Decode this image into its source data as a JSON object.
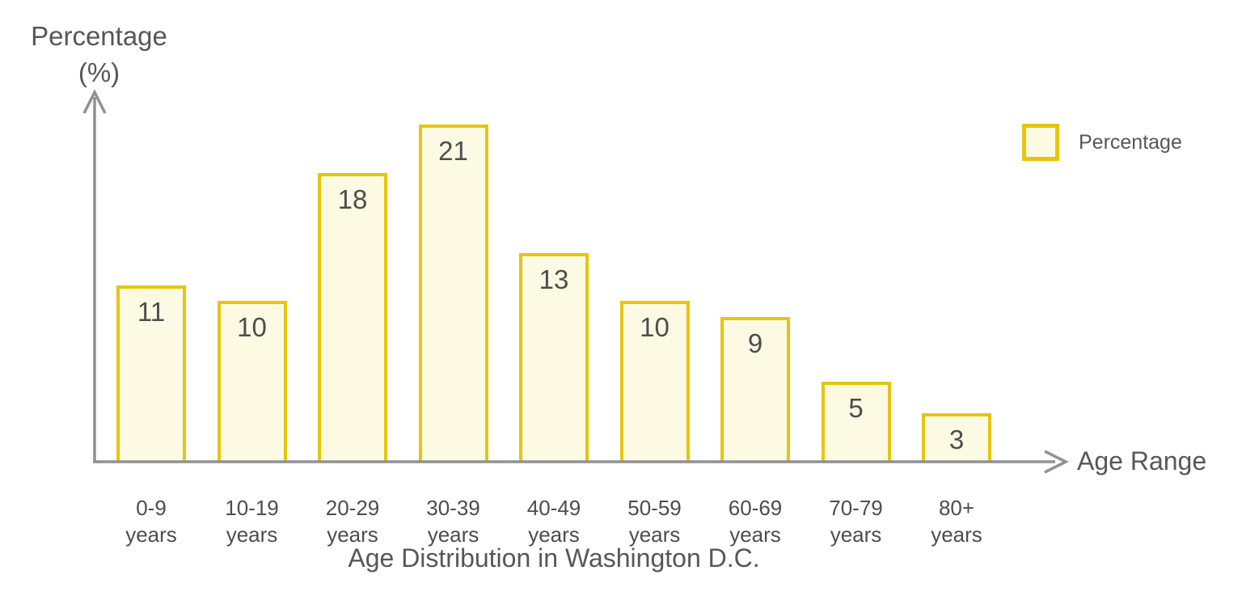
{
  "title": "Age Distribution in Washington D.C.",
  "y_axis": {
    "label_line1": "Percentage",
    "label_line2": "(%)"
  },
  "x_axis": {
    "label": "Age Range"
  },
  "legend": {
    "label": "Percentage"
  },
  "colors": {
    "bar_fill": "#FCFAE3",
    "bar_border": "#E5C60F",
    "axis": "#919191",
    "value_text": "#4D4D4D",
    "label_text": "#575757"
  },
  "chart_data": {
    "type": "bar",
    "categories": [
      "0-9 years",
      "10-19 years",
      "20-29 years",
      "30-39 years",
      "40-49 years",
      "50-59 years",
      "60-69 years",
      "70-79 years",
      "80+ years"
    ],
    "values": [
      11,
      10,
      18,
      21,
      13,
      10,
      9,
      5,
      3
    ],
    "series_name": "Percentage",
    "title": "Age Distribution in Washington D.C.",
    "xlabel": "Age Range",
    "ylabel": "Percentage (%)",
    "ylim": [
      0,
      23
    ],
    "grid": false,
    "legend_position": "top-right",
    "value_labels": "inside-top"
  }
}
